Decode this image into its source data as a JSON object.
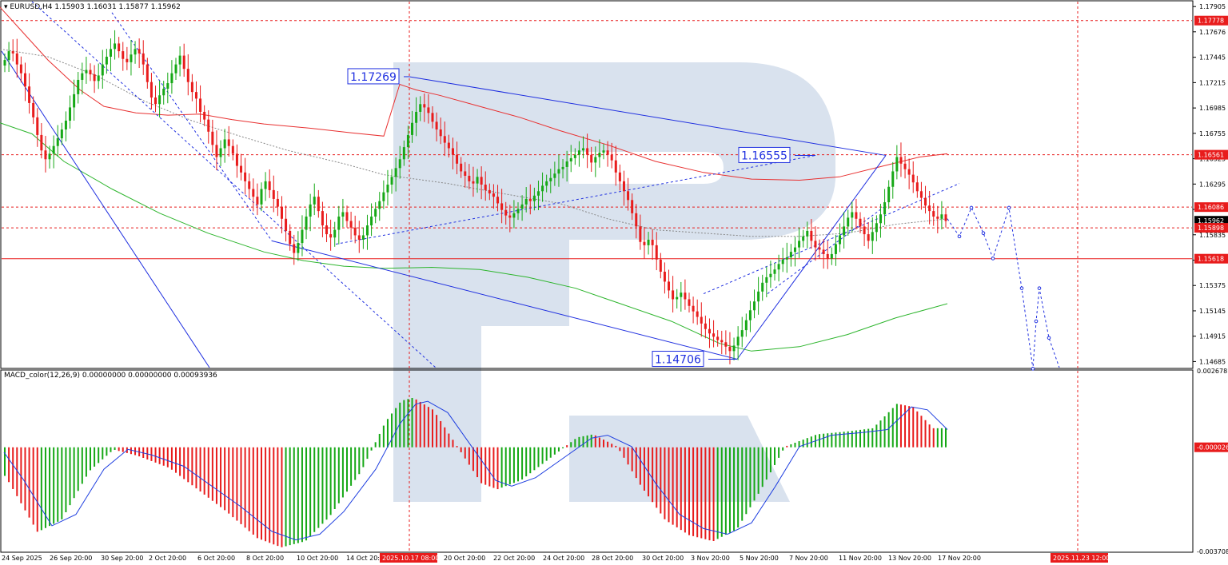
{
  "header": {
    "symbol": "EURUSD,H4",
    "ohlc": "1.15903 1.16031 1.15877 1.15962",
    "indicator": "MACD_color(12,26,9) 0.00000000 0.00000000 0.00093936"
  },
  "colors": {
    "bull": "#16a816",
    "bear": "#e81c1c",
    "ma_slow": "#e83030",
    "ma_fast": "#2db52d",
    "trend": "#2030e0",
    "level": "#e81c1c",
    "macd_line": "#2040e0",
    "watermark": "#d5dfec"
  },
  "chart_data": [
    {
      "type": "candlestick",
      "symbol": "EURUSD",
      "timeframe": "H4",
      "ylim": [
        1.1463,
        1.1795
      ],
      "y_ticks": [
        "1.17905",
        "1.17676",
        "1.17445",
        "1.17215",
        "1.16985",
        "1.16755",
        "1.16525",
        "1.16295",
        "1.16065",
        "1.15835",
        "1.15605",
        "1.15375",
        "1.15145",
        "1.14915",
        "1.14685"
      ],
      "x_ticks": [
        "24 Sep 2025",
        "26 Sep 20:00",
        "30 Sep 20:00",
        "2 Oct 20:00",
        "6 Oct 20:00",
        "8 Oct 20:00",
        "10 Oct 20:00",
        "14 Oct 20:00",
        "2025.10.17 08:00",
        "20 Oct 20:00",
        "22 Oct 20:00",
        "24 Oct 20:00",
        "28 Oct 20:00",
        "30 Oct 20:00",
        "3 Nov 20:00",
        "5 Nov 20:00",
        "7 Nov 20:00",
        "11 Nov 20:00",
        "13 Nov 20:00",
        "17 Nov 20:00",
        "2025.11.23 12:00"
      ],
      "price_labels": [
        {
          "value": 1.17778,
          "text": "1.17778"
        },
        {
          "value": 1.16561,
          "text": "1.16561"
        },
        {
          "value": 1.16086,
          "text": "1.16086"
        },
        {
          "value": 1.15962,
          "text": "1.15962",
          "current": true
        },
        {
          "value": 1.15898,
          "text": "1.15898"
        },
        {
          "value": 1.15618,
          "text": "1.15618"
        }
      ],
      "annotations": [
        {
          "text": "1.17269",
          "value": 1.17269
        },
        {
          "text": "1.16555",
          "value": 1.16555
        },
        {
          "text": "1.14706",
          "value": 1.14706
        }
      ],
      "horizontal_levels": [
        1.17778,
        1.16561,
        1.16086,
        1.15898,
        1.15618
      ],
      "closes": [
        1.1742,
        1.175,
        1.1748,
        1.1738,
        1.173,
        1.1718,
        1.1703,
        1.169,
        1.1674,
        1.166,
        1.1652,
        1.1657,
        1.1664,
        1.1671,
        1.1679,
        1.1687,
        1.1699,
        1.1711,
        1.1724,
        1.173,
        1.1733,
        1.1729,
        1.1723,
        1.1728,
        1.1738,
        1.1745,
        1.1752,
        1.1757,
        1.175,
        1.1743,
        1.174,
        1.1747,
        1.1752,
        1.1748,
        1.1738,
        1.1722,
        1.1708,
        1.1702,
        1.171,
        1.1716,
        1.1721,
        1.173,
        1.1738,
        1.1746,
        1.1734,
        1.1722,
        1.1713,
        1.1707,
        1.1695,
        1.1688,
        1.1677,
        1.1665,
        1.1654,
        1.1662,
        1.167,
        1.1664,
        1.1657,
        1.1646,
        1.164,
        1.1632,
        1.1625,
        1.1618,
        1.1611,
        1.1625,
        1.1632,
        1.1624,
        1.1616,
        1.1609,
        1.1598,
        1.1587,
        1.1575,
        1.1567,
        1.1576,
        1.1588,
        1.16,
        1.1611,
        1.1618,
        1.1605,
        1.1592,
        1.1584,
        1.1581,
        1.1588,
        1.16,
        1.1604,
        1.1596,
        1.159,
        1.1583,
        1.1579,
        1.1583,
        1.1592,
        1.16,
        1.1607,
        1.1614,
        1.1622,
        1.1629,
        1.1636,
        1.1644,
        1.1652,
        1.1663,
        1.1674,
        1.1685,
        1.1695,
        1.1702,
        1.1699,
        1.1694,
        1.1686,
        1.1679,
        1.1673,
        1.1667,
        1.1662,
        1.1656,
        1.1648,
        1.1641,
        1.1637,
        1.1632,
        1.163,
        1.1636,
        1.1629,
        1.1624,
        1.1621,
        1.1618,
        1.1612,
        1.1606,
        1.1601,
        1.1599,
        1.1603,
        1.1607,
        1.1611,
        1.1616,
        1.1614,
        1.1619,
        1.1623,
        1.1628,
        1.1632,
        1.1635,
        1.1639,
        1.1643,
        1.1645,
        1.165,
        1.1653,
        1.1656,
        1.166,
        1.1662,
        1.1656,
        1.1649,
        1.1654,
        1.1658,
        1.166,
        1.1656,
        1.1651,
        1.164,
        1.1632,
        1.1623,
        1.1615,
        1.1603,
        1.1591,
        1.1577,
        1.1574,
        1.1579,
        1.1574,
        1.1561,
        1.155,
        1.1541,
        1.1533,
        1.1525,
        1.1527,
        1.1531,
        1.1525,
        1.1519,
        1.1514,
        1.1509,
        1.1503,
        1.1498,
        1.1494,
        1.1491,
        1.1488,
        1.1486,
        1.1482,
        1.1478,
        1.1483,
        1.1491,
        1.1497,
        1.1506,
        1.1515,
        1.1523,
        1.1532,
        1.154,
        1.1545,
        1.1548,
        1.1552,
        1.1557,
        1.1561,
        1.1563,
        1.1568,
        1.1572,
        1.1578,
        1.1582,
        1.1587,
        1.1578,
        1.1572,
        1.157,
        1.1566,
        1.1562,
        1.1566,
        1.1575,
        1.1583,
        1.1591,
        1.1599,
        1.1604,
        1.1598,
        1.1591,
        1.1584,
        1.1578,
        1.1586,
        1.1594,
        1.1602,
        1.1613,
        1.1627,
        1.1641,
        1.1654,
        1.1648,
        1.1643,
        1.1638,
        1.1631,
        1.1623,
        1.1617,
        1.161,
        1.1605,
        1.16,
        1.1598,
        1.1602,
        1.1596
      ],
      "ma_slow": [
        [
          0,
          1.179
        ],
        [
          25,
          1.177
        ],
        [
          60,
          1.1742
        ],
        [
          100,
          1.1715
        ],
        [
          130,
          1.17
        ],
        [
          170,
          1.1694
        ],
        [
          210,
          1.1692
        ],
        [
          250,
          1.1693
        ],
        [
          290,
          1.1688
        ],
        [
          330,
          1.1684
        ],
        [
          390,
          1.168
        ],
        [
          440,
          1.1676
        ],
        [
          480,
          1.1673
        ],
        [
          500,
          1.172
        ],
        [
          520,
          1.1715
        ],
        [
          550,
          1.171
        ],
        [
          600,
          1.17
        ],
        [
          650,
          1.169
        ],
        [
          700,
          1.1678
        ],
        [
          760,
          1.1665
        ],
        [
          820,
          1.165
        ],
        [
          880,
          1.164
        ],
        [
          940,
          1.1634
        ],
        [
          1000,
          1.1633
        ],
        [
          1050,
          1.1636
        ],
        [
          1100,
          1.1645
        ],
        [
          1150,
          1.1654
        ],
        [
          1185,
          1.1657
        ]
      ],
      "ma_fast": [
        [
          0,
          1.1685
        ],
        [
          40,
          1.1675
        ],
        [
          80,
          1.165
        ],
        [
          140,
          1.1625
        ],
        [
          200,
          1.1603
        ],
        [
          260,
          1.1585
        ],
        [
          330,
          1.1568
        ],
        [
          380,
          1.156
        ],
        [
          430,
          1.1555
        ],
        [
          480,
          1.1553
        ],
        [
          540,
          1.1554
        ],
        [
          600,
          1.1552
        ],
        [
          660,
          1.1545
        ],
        [
          720,
          1.1535
        ],
        [
          780,
          1.152
        ],
        [
          840,
          1.1505
        ],
        [
          900,
          1.1485
        ],
        [
          940,
          1.1478
        ],
        [
          1000,
          1.1482
        ],
        [
          1060,
          1.1493
        ],
        [
          1120,
          1.1508
        ],
        [
          1185,
          1.1521
        ]
      ],
      "ma_mid": [
        [
          0,
          1.1752
        ],
        [
          60,
          1.1745
        ],
        [
          120,
          1.1728
        ],
        [
          180,
          1.1705
        ],
        [
          240,
          1.1687
        ],
        [
          300,
          1.1673
        ],
        [
          360,
          1.166
        ],
        [
          430,
          1.1648
        ],
        [
          480,
          1.1638
        ],
        [
          560,
          1.163
        ],
        [
          620,
          1.1622
        ],
        [
          700,
          1.1612
        ],
        [
          760,
          1.1598
        ],
        [
          820,
          1.1588
        ],
        [
          880,
          1.1585
        ],
        [
          940,
          1.1582
        ],
        [
          1000,
          1.1582
        ],
        [
          1060,
          1.1585
        ],
        [
          1120,
          1.1593
        ],
        [
          1185,
          1.1598
        ]
      ],
      "forecast": [
        [
          1185,
          1.1598
        ],
        [
          1200,
          1.1582
        ],
        [
          1215,
          1.1608
        ],
        [
          1230,
          1.1585
        ],
        [
          1242,
          1.1562
        ],
        [
          1262,
          1.1608
        ],
        [
          1278,
          1.1535
        ],
        [
          1292,
          1.1462
        ],
        [
          1296,
          1.1505
        ],
        [
          1300,
          1.1535
        ],
        [
          1312,
          1.149
        ],
        [
          1325,
          1.1463
        ]
      ]
    },
    {
      "type": "bar",
      "name": "MACD_color(12,26,9)",
      "ylim": [
        -0.0037081,
        0.0026781
      ],
      "y_ticks": [
        "0.0026781",
        "-0.000026",
        "-0.0037081"
      ],
      "signal_line": [
        [
          5,
          -0.0002
        ],
        [
          30,
          -0.0012
        ],
        [
          65,
          -0.0028
        ],
        [
          95,
          -0.0024
        ],
        [
          130,
          -0.0008
        ],
        [
          160,
          -0.0001
        ],
        [
          190,
          -0.0003
        ],
        [
          230,
          -0.0007
        ],
        [
          270,
          -0.0015
        ],
        [
          300,
          -0.0021
        ],
        [
          340,
          -0.003
        ],
        [
          370,
          -0.0033
        ],
        [
          400,
          -0.0031
        ],
        [
          430,
          -0.0023
        ],
        [
          470,
          -0.0008
        ],
        [
          500,
          0.0008
        ],
        [
          520,
          0.0015
        ],
        [
          535,
          0.0016
        ],
        [
          560,
          0.0012
        ],
        [
          590,
          0.0
        ],
        [
          620,
          -0.0012
        ],
        [
          640,
          -0.0014
        ],
        [
          670,
          -0.0011
        ],
        [
          700,
          -0.0005
        ],
        [
          740,
          0.0003
        ],
        [
          760,
          0.0004
        ],
        [
          790,
          0.0
        ],
        [
          820,
          -0.0013
        ],
        [
          850,
          -0.0024
        ],
        [
          880,
          -0.0029
        ],
        [
          910,
          -0.0031
        ],
        [
          940,
          -0.0027
        ],
        [
          970,
          -0.0014
        ],
        [
          1000,
          0.0
        ],
        [
          1040,
          0.0004
        ],
        [
          1080,
          0.0005
        ],
        [
          1110,
          0.0006
        ],
        [
          1140,
          0.0014
        ],
        [
          1160,
          0.0013
        ],
        [
          1185,
          0.0006
        ]
      ]
    }
  ]
}
